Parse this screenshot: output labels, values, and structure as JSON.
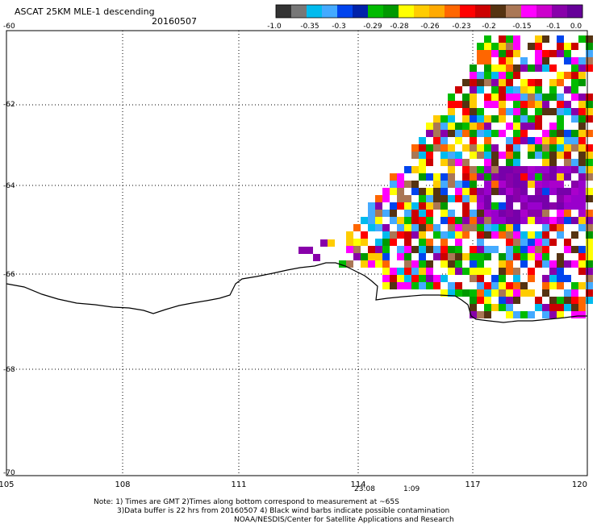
{
  "header": {
    "title": "ASCAT 25KM MLE-1 descending",
    "date": "20160507"
  },
  "colorbar": {
    "colors": [
      "#333333",
      "#777777",
      "#00bbee",
      "#44aaff",
      "#0044ee",
      "#0022aa",
      "#00bb00",
      "#009900",
      "#ffff00",
      "#ffcc00",
      "#ffaa00",
      "#ff6600",
      "#ff0000",
      "#cc0000",
      "#553311",
      "#aa7755",
      "#ff00ff",
      "#cc00cc",
      "#8800aa",
      "#660099"
    ],
    "tick_labels": [
      "-1.0",
      "-0.35",
      "-0.3",
      "-0.29",
      "-0.28",
      "-0.26",
      "-0.23",
      "-0.2",
      "-0.15",
      "-0.1",
      "0.0"
    ]
  },
  "axes": {
    "lon_labels": [
      "105",
      "108",
      "111",
      "114",
      "117",
      "120"
    ],
    "lat_labels": [
      "-60",
      "-62",
      "-64",
      "-66",
      "-68",
      "-70"
    ]
  },
  "time_labels": [
    {
      "text": "23:08",
      "color": "#800080"
    },
    {
      "text": "1:09",
      "color": "#800080"
    }
  ],
  "notes": {
    "line1": "Note: 1) Times are GMT 2)Times along bottom correspond to measurement at ~65S",
    "line2": "3)Data buffer is 22 hrs from 20160507 4) Black wind barbs indicate possible contamination",
    "line3": "NOAA/NESDIS/Center for Satellite Applications and Research"
  }
}
